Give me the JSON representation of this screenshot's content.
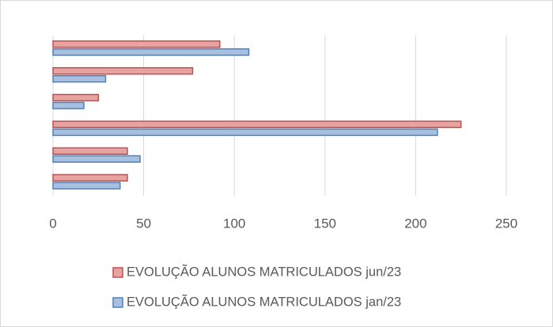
{
  "chart_data": {
    "type": "hbar",
    "categories": [
      null,
      null,
      null,
      null,
      null,
      null
    ],
    "series": [
      {
        "name": "EVOLUÇÃO ALUNOS MATRICULADOS jun/23",
        "color": "#c0504d",
        "fill": "#e6a3a1",
        "values": [
          92,
          77,
          25,
          225,
          41,
          41
        ]
      },
      {
        "name": "EVOLUÇÃO ALUNOS MATRICULADOS jan/23",
        "color": "#4f81bd",
        "fill": "#a7c0e0",
        "values": [
          108,
          29,
          17,
          212,
          48,
          37
        ]
      }
    ],
    "xlim": [
      0,
      250
    ],
    "xticks": [
      0,
      50,
      100,
      150,
      200,
      250
    ],
    "grid": true
  }
}
